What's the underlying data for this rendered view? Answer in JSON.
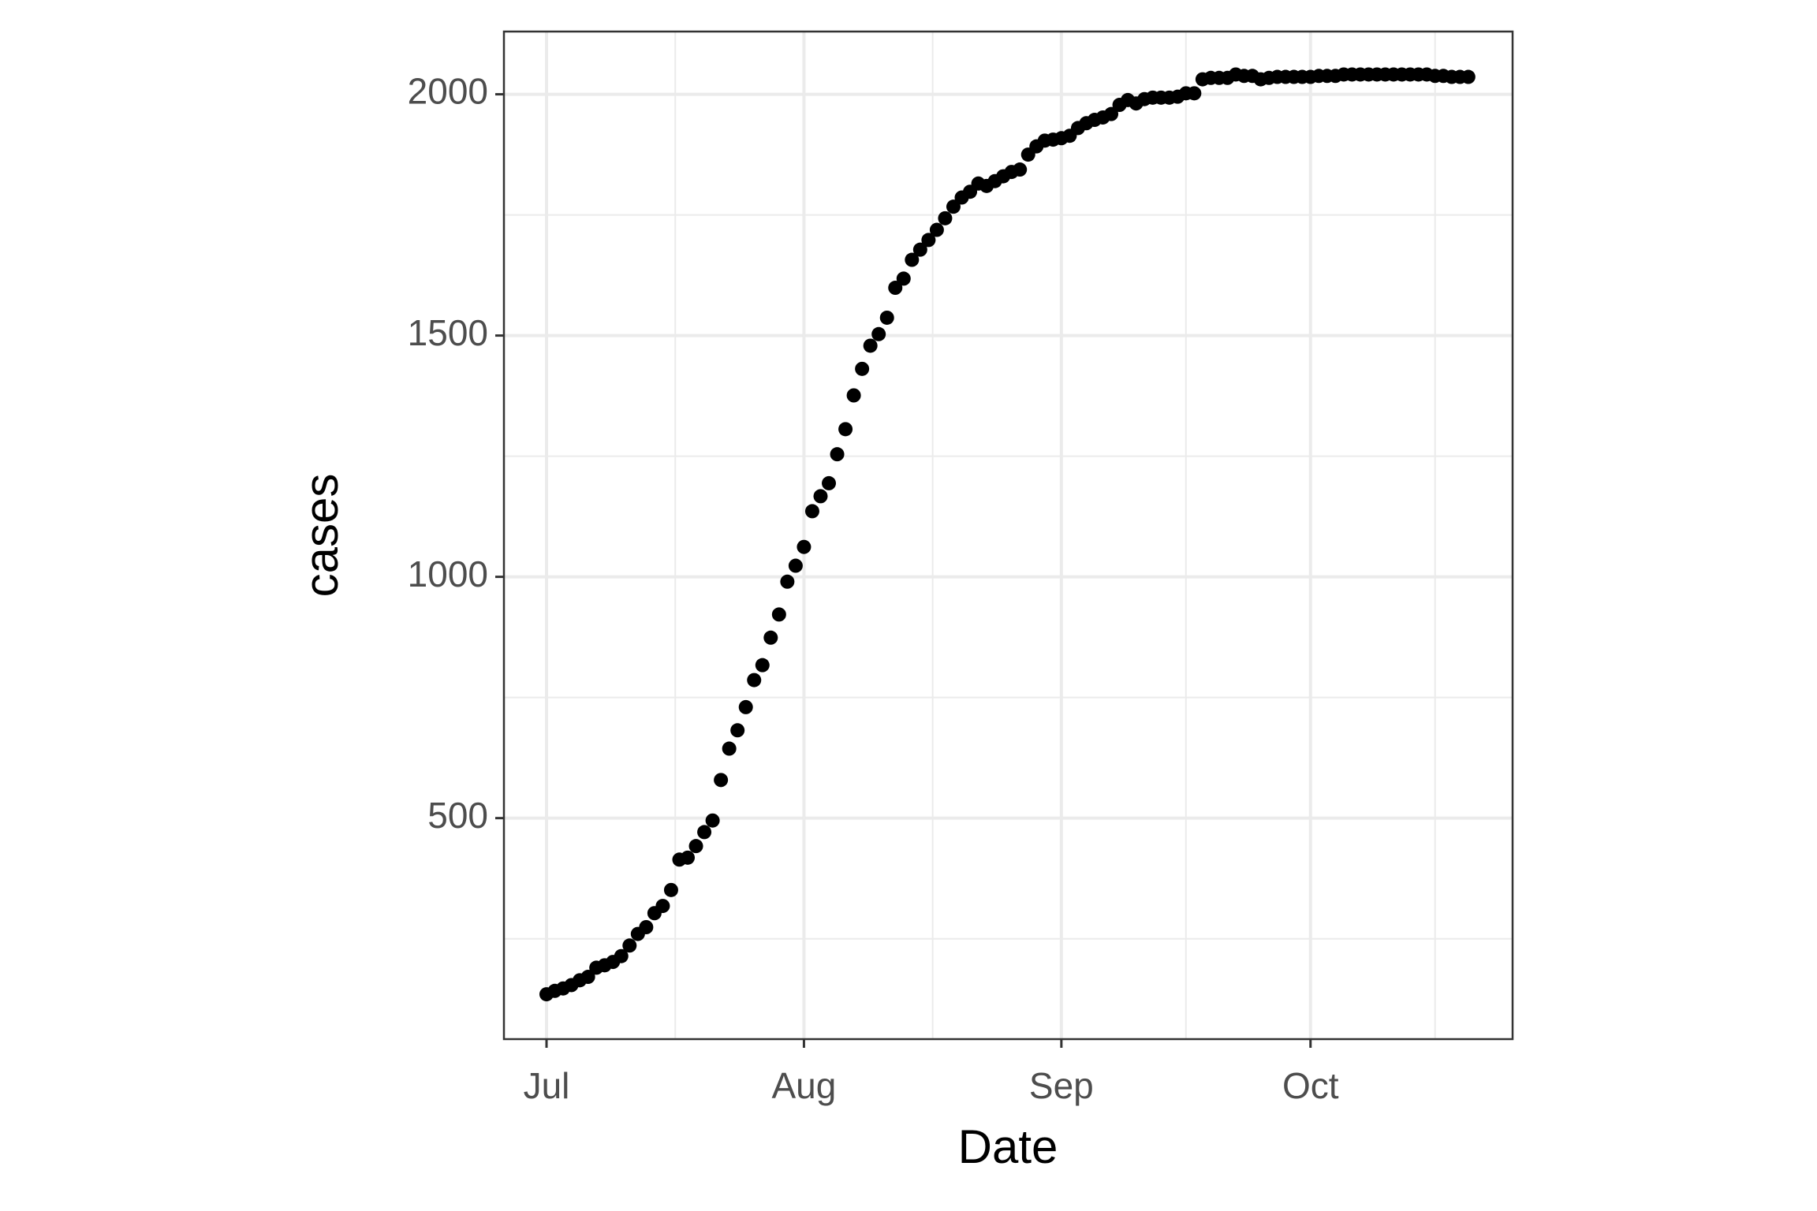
{
  "chart_data": {
    "type": "scatter",
    "x_label": "Date",
    "y_label": "cases",
    "categories": [
      "Jul",
      null,
      null,
      null,
      null,
      null,
      null,
      null,
      null,
      null,
      null,
      null,
      null,
      null,
      null,
      null,
      null,
      null,
      null,
      null,
      null,
      null,
      null,
      null,
      null,
      null,
      null,
      null,
      null,
      null,
      null,
      "Aug",
      null,
      null,
      null,
      null,
      null,
      null,
      null,
      null,
      null,
      null,
      null,
      null,
      null,
      null,
      null,
      null,
      null,
      null,
      null,
      null,
      null,
      null,
      null,
      null,
      null,
      null,
      null,
      null,
      null,
      null,
      "Sep",
      null,
      null,
      null,
      null,
      null,
      null,
      null,
      null,
      null,
      null,
      null,
      null,
      null,
      null,
      null,
      null,
      null,
      null,
      null,
      null,
      null,
      null,
      null,
      null,
      null,
      null,
      null,
      null,
      null,
      "Oct",
      null,
      null,
      null,
      null,
      null,
      null,
      null,
      null,
      null,
      null,
      null,
      null,
      null,
      null,
      null,
      null,
      null,
      null,
      null
    ],
    "values": [
      135,
      142,
      147,
      154,
      164,
      171,
      190,
      195,
      202,
      214,
      236,
      260,
      274,
      303,
      318,
      351,
      414,
      418,
      442,
      471,
      495,
      579,
      644,
      682,
      730,
      786,
      817,
      874,
      922,
      990,
      1023,
      1062,
      1136,
      1167,
      1194,
      1254,
      1306,
      1376,
      1431,
      1479,
      1503,
      1537,
      1599,
      1618,
      1657,
      1678,
      1698,
      1719,
      1743,
      1767,
      1786,
      1798,
      1815,
      1810,
      1820,
      1830,
      1839,
      1844,
      1875,
      1892,
      1904,
      1906,
      1909,
      1914,
      1930,
      1940,
      1947,
      1952,
      1959,
      1978,
      1988,
      1981,
      1990,
      1993,
      1993,
      1993,
      1995,
      2002,
      2002,
      2031,
      2034,
      2034,
      2034,
      2041,
      2038,
      2038,
      2031,
      2034,
      2036,
      2036,
      2036,
      2036,
      2036,
      2038,
      2038,
      2038,
      2041,
      2041,
      2041,
      2041,
      2041,
      2041,
      2041,
      2041,
      2041,
      2041,
      2041,
      2038,
      2038,
      2036,
      2036,
      2036
    ],
    "color": "#000000",
    "ylim": [
      42,
      2130
    ],
    "yticks": [
      500,
      1000,
      1500,
      2000
    ],
    "grid": true
  }
}
